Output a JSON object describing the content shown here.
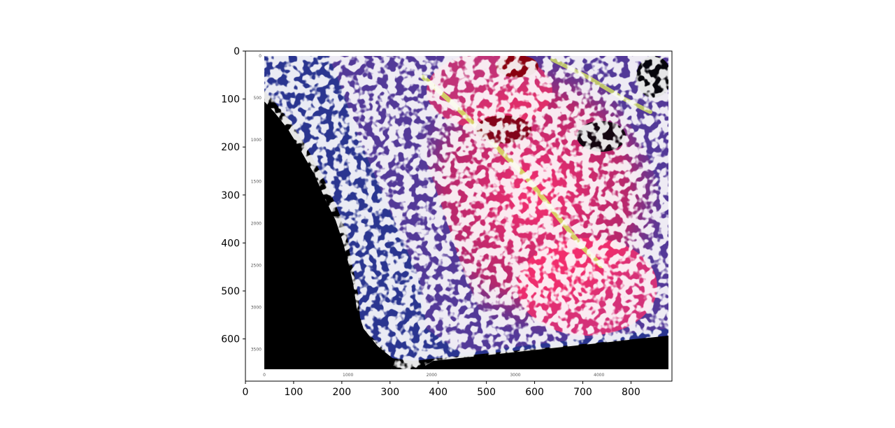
{
  "chart_data": {
    "type": "image",
    "title": "",
    "xlabel": "",
    "ylabel": "",
    "xlim": [
      0,
      885
    ],
    "ylim": [
      0,
      688
    ],
    "xticks": [
      0,
      100,
      200,
      300,
      400,
      500,
      600,
      700,
      800
    ],
    "yticks": [
      0,
      100,
      200,
      300,
      400,
      500,
      600
    ],
    "inner_image": {
      "xticks": [
        0,
        1000,
        2000,
        3000,
        4000
      ],
      "yticks": [
        0,
        500,
        1000,
        1500,
        2000,
        2500,
        3000,
        3500
      ]
    },
    "colors": {
      "background": "#000000",
      "land_blue": "#2a3590",
      "land_purple": "#6a3a9a",
      "highlight_magenta": "#ff2f6e",
      "highlight_yellow": "#d7e862",
      "cloud_white": "#ffffff",
      "dark_red": "#8a0010"
    }
  }
}
